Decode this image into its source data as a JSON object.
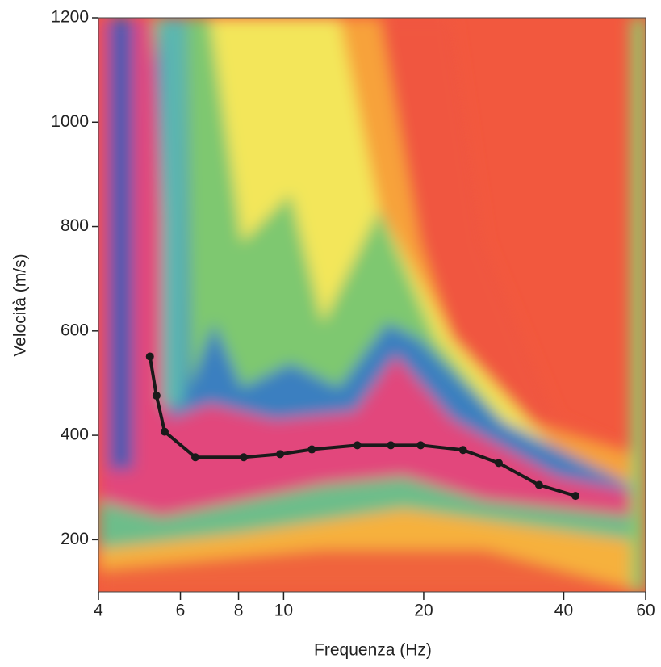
{
  "chart_data": {
    "type": "line",
    "xscale": "log",
    "x_label": "Frequenza (Hz)",
    "y_label": "Velocità (m/s)",
    "xlim": [
      4,
      60
    ],
    "ylim": [
      100,
      1200
    ],
    "xticks": [
      4,
      6,
      8,
      10,
      20,
      40,
      60
    ],
    "yticks": [
      200,
      400,
      600,
      800,
      1000,
      1200
    ],
    "series": [
      {
        "name": null,
        "color": "#1a1a1a",
        "x": [
          5.16,
          5.33,
          5.55,
          6.46,
          8.21,
          9.83,
          11.5,
          14.4,
          17.0,
          19.7,
          24.3,
          29.0,
          35.4,
          42.4
        ],
        "values": [
          551,
          476,
          407,
          358,
          358,
          364,
          373,
          381,
          381,
          381,
          372,
          347,
          305,
          284
        ]
      }
    ]
  }
}
